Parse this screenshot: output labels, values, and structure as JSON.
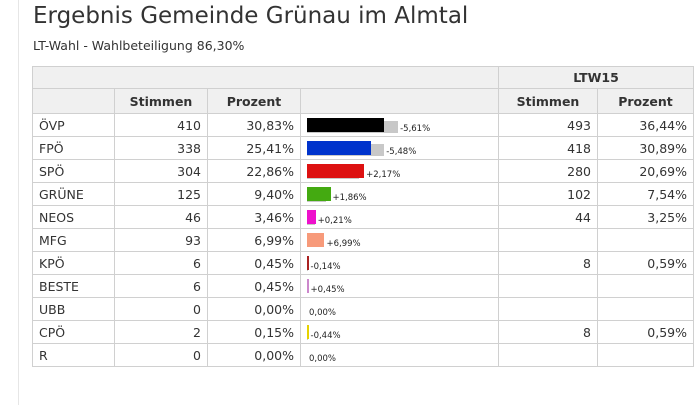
{
  "header": {
    "title": "Ergebnis Gemeinde Grünau im Almtal",
    "subtitle": "LT-Wahl - Wahlbeteiligung 86,30%"
  },
  "table": {
    "group_label": "LTW15",
    "columns": {
      "votes": "Stimmen",
      "percent": "Prozent",
      "prev_votes": "Stimmen",
      "prev_percent": "Prozent"
    },
    "rows": [
      {
        "party": "ÖVP",
        "votes": "410",
        "percent": "30,83%",
        "pct": 30.83,
        "prev_pct": 36.44,
        "diff": "-5,61%",
        "color": "#000000",
        "prev_votes": "493",
        "prev_percent": "36,44%"
      },
      {
        "party": "FPÖ",
        "votes": "338",
        "percent": "25,41%",
        "pct": 25.41,
        "prev_pct": 30.89,
        "diff": "-5,48%",
        "color": "#0033cc",
        "prev_votes": "418",
        "prev_percent": "30,89%"
      },
      {
        "party": "SPÖ",
        "votes": "304",
        "percent": "22,86%",
        "pct": 22.86,
        "prev_pct": 20.69,
        "diff": "+2,17%",
        "color": "#dd1111",
        "prev_votes": "280",
        "prev_percent": "20,69%"
      },
      {
        "party": "GRÜNE",
        "votes": "125",
        "percent": "9,40%",
        "pct": 9.4,
        "prev_pct": 7.54,
        "diff": "+1,86%",
        "color": "#44aa11",
        "prev_votes": "102",
        "prev_percent": "7,54%"
      },
      {
        "party": "NEOS",
        "votes": "46",
        "percent": "3,46%",
        "pct": 3.46,
        "prev_pct": 3.25,
        "diff": "+0,21%",
        "color": "#ee11cc",
        "prev_votes": "44",
        "prev_percent": "3,25%"
      },
      {
        "party": "MFG",
        "votes": "93",
        "percent": "6,99%",
        "pct": 6.99,
        "prev_pct": 0,
        "diff": "+6,99%",
        "color": "#f79a7a",
        "prev_votes": "",
        "prev_percent": ""
      },
      {
        "party": "KPÖ",
        "votes": "6",
        "percent": "0,45%",
        "pct": 0.45,
        "prev_pct": 0.59,
        "diff": "-0,14%",
        "color": "#aa2222",
        "prev_votes": "8",
        "prev_percent": "0,59%"
      },
      {
        "party": "BESTE",
        "votes": "6",
        "percent": "0,45%",
        "pct": 0.45,
        "prev_pct": 0,
        "diff": "+0,45%",
        "color": "#cc88cc",
        "prev_votes": "",
        "prev_percent": ""
      },
      {
        "party": "UBB",
        "votes": "0",
        "percent": "0,00%",
        "pct": 0,
        "prev_pct": 0,
        "diff": "0,00%",
        "color": "#999999",
        "prev_votes": "",
        "prev_percent": ""
      },
      {
        "party": "CPÖ",
        "votes": "2",
        "percent": "0,15%",
        "pct": 0.15,
        "prev_pct": 0.59,
        "diff": "-0,44%",
        "color": "#e6d200",
        "prev_votes": "8",
        "prev_percent": "0,59%"
      },
      {
        "party": "R",
        "votes": "0",
        "percent": "0,00%",
        "pct": 0,
        "prev_pct": 0,
        "diff": "0,00%",
        "color": "#999999",
        "prev_votes": "",
        "prev_percent": ""
      }
    ]
  }
}
